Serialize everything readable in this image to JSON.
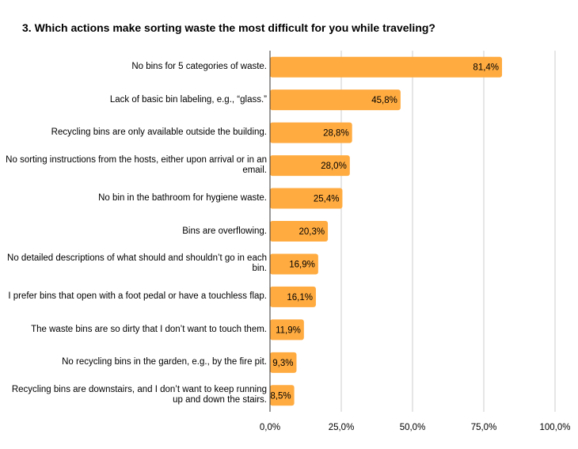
{
  "chart_data": {
    "type": "bar",
    "orientation": "horizontal",
    "title": "3. Which actions make sorting waste the most difficult for you while traveling?",
    "categories": [
      "No bins for 5 categories of waste.",
      "Lack of basic bin labeling, e.g., “glass.”",
      "Recycling bins are only available outside the building.",
      "No sorting instructions from the hosts, either upon arrival or in an email.",
      "No bin in the bathroom for hygiene waste.",
      "Bins are overflowing.",
      "No detailed descriptions of what should and shouldn’t go in each bin.",
      "I prefer bins that open with a foot pedal or have a touchless flap.",
      "The waste bins are so dirty that I don’t want to touch them.",
      "No recycling bins in the garden, e.g., by the fire pit.",
      "Recycling bins are downstairs, and I don’t want to keep running up and down the stairs."
    ],
    "values": [
      81.4,
      45.8,
      28.8,
      28.0,
      25.4,
      20.3,
      16.9,
      16.1,
      11.9,
      9.3,
      8.5
    ],
    "value_labels": [
      "81,4%",
      "45,8%",
      "28,8%",
      "28,0%",
      "25,4%",
      "20,3%",
      "16,9%",
      "16,1%",
      "11,9%",
      "9,3%",
      "8,5%"
    ],
    "xlim": [
      0,
      100
    ],
    "xticks": [
      0,
      25,
      50,
      75,
      100
    ],
    "xtick_labels": [
      "0,0%",
      "25,0%",
      "50,0%",
      "75,0%",
      "100,0%"
    ],
    "xlabel": "",
    "ylabel": "",
    "grid": "vertical",
    "bar_color": "#ffab40",
    "grid_color": "#cccccc",
    "axis_color": "#333333"
  }
}
